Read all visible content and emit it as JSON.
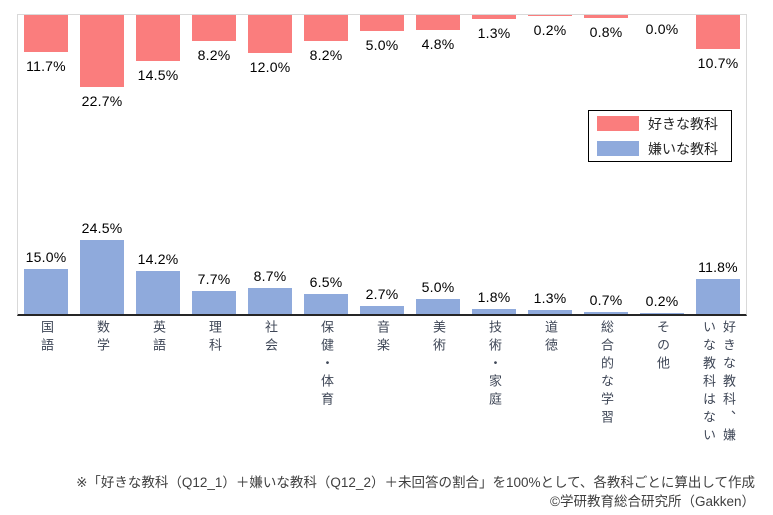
{
  "chart_data": {
    "type": "bar",
    "subtype": "diverging-paired-columns",
    "title": "",
    "categories": [
      "国語",
      "数学",
      "英語",
      "理科",
      "社会",
      "保健・体育",
      "音楽",
      "美術",
      "技術・家庭",
      "道徳",
      "総合的な学習",
      "その他",
      "好きな教科、嫌いな教科はない"
    ],
    "series": [
      {
        "name": "好きな教科",
        "color": "#fa7d7d",
        "direction": "hanging-from-top",
        "values": [
          11.7,
          22.7,
          14.5,
          8.2,
          12.0,
          8.2,
          5.0,
          4.8,
          1.3,
          0.2,
          0.8,
          0.0,
          10.7
        ],
        "labels": [
          "11.7%",
          "22.7%",
          "14.5%",
          "8.2%",
          "12.0%",
          "8.2%",
          "5.0%",
          "4.8%",
          "1.3%",
          "0.2%",
          "0.8%",
          "0.0%",
          "10.7%"
        ]
      },
      {
        "name": "嫌いな教科",
        "color": "#8faadc",
        "direction": "rising-from-axis",
        "values": [
          15.0,
          24.5,
          14.2,
          7.7,
          8.7,
          6.5,
          2.7,
          5.0,
          1.8,
          1.3,
          0.7,
          0.2,
          11.8
        ],
        "labels": [
          "15.0%",
          "24.5%",
          "14.2%",
          "7.7%",
          "8.7%",
          "6.5%",
          "2.7%",
          "5.0%",
          "1.8%",
          "1.3%",
          "0.7%",
          "0.2%",
          "11.8%"
        ]
      }
    ],
    "value_label_format": "0.0%",
    "grid": false,
    "legend_position": "middle-right",
    "axis_color": "#262626",
    "plot_border_color": "#d9d9d9"
  },
  "legend": {
    "items": [
      {
        "label": "好きな教科",
        "color": "#fa7d7d"
      },
      {
        "label": "嫌いな教科",
        "color": "#8faadc"
      }
    ]
  },
  "footer": {
    "note": "※「好きな教科（Q12_1）＋嫌いな教科（Q12_2）＋未回答の割合」を100%として、各教科ごとに算出して作成",
    "credit": "©学研教育総合研究所（Gakken）"
  }
}
